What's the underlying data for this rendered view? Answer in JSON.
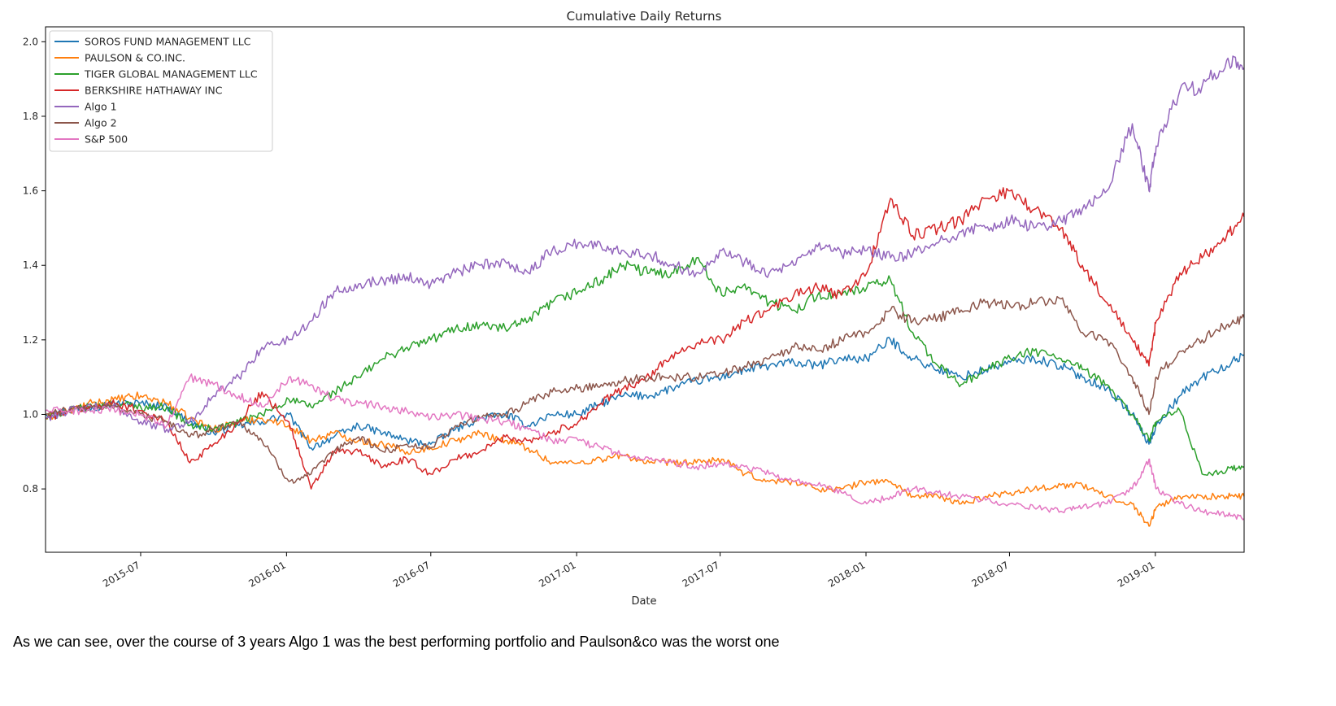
{
  "caption": "As we can see, over the course of 3 years Algo 1 was the best performing portfolio and Paulson&co was the worst one",
  "chart_data": {
    "type": "line",
    "title": "Cumulative Daily Returns",
    "xlabel": "Date",
    "ylabel": "",
    "x_type": "date",
    "xlim": [
      "2015-03-03",
      "2019-04-23"
    ],
    "ylim": [
      0.63,
      2.04
    ],
    "x_ticks": [
      "2015-07",
      "2016-01",
      "2016-07",
      "2017-01",
      "2017-07",
      "2018-01",
      "2018-07",
      "2019-01"
    ],
    "y_ticks": [
      0.8,
      1.0,
      1.2,
      1.4,
      1.6,
      1.8,
      2.0
    ],
    "grid": false,
    "legend_position": "top-left",
    "x": [
      "2015-03-03",
      "2015-04-01",
      "2015-05-01",
      "2015-06-01",
      "2015-07-01",
      "2015-08-03",
      "2015-09-01",
      "2015-10-01",
      "2015-11-02",
      "2015-12-01",
      "2016-01-04",
      "2016-02-01",
      "2016-03-01",
      "2016-04-01",
      "2016-05-02",
      "2016-06-01",
      "2016-07-01",
      "2016-08-01",
      "2016-09-01",
      "2016-10-03",
      "2016-11-01",
      "2016-12-01",
      "2017-01-03",
      "2017-02-01",
      "2017-03-01",
      "2017-04-03",
      "2017-05-01",
      "2017-06-01",
      "2017-07-03",
      "2017-08-01",
      "2017-09-01",
      "2017-10-02",
      "2017-11-01",
      "2017-12-01",
      "2018-01-02",
      "2018-02-01",
      "2018-03-01",
      "2018-04-02",
      "2018-05-01",
      "2018-06-01",
      "2018-07-02",
      "2018-08-01",
      "2018-09-04",
      "2018-10-01",
      "2018-11-01",
      "2018-12-03",
      "2018-12-24",
      "2019-01-02",
      "2019-02-01",
      "2019-03-01",
      "2019-04-01",
      "2019-04-23"
    ],
    "series": [
      {
        "name": "SOROS FUND MANAGEMENT LLC",
        "color": "#1f77b4",
        "values": [
          1.0,
          1.01,
          1.02,
          1.03,
          1.03,
          1.02,
          0.98,
          0.95,
          0.97,
          0.98,
          1.0,
          0.91,
          0.94,
          0.97,
          0.95,
          0.93,
          0.92,
          0.96,
          0.99,
          1.0,
          0.97,
          1.0,
          1.0,
          1.03,
          1.05,
          1.05,
          1.07,
          1.09,
          1.1,
          1.12,
          1.13,
          1.14,
          1.13,
          1.15,
          1.15,
          1.2,
          1.15,
          1.12,
          1.1,
          1.12,
          1.14,
          1.15,
          1.13,
          1.1,
          1.07,
          1.0,
          0.92,
          0.97,
          1.05,
          1.1,
          1.13,
          1.16
        ]
      },
      {
        "name": "PAULSON & CO.INC.",
        "color": "#ff7f0e",
        "values": [
          0.99,
          1.01,
          1.03,
          1.04,
          1.05,
          1.03,
          0.99,
          0.96,
          0.98,
          0.99,
          0.97,
          0.93,
          0.95,
          0.93,
          0.92,
          0.9,
          0.91,
          0.93,
          0.95,
          0.93,
          0.91,
          0.87,
          0.87,
          0.88,
          0.89,
          0.87,
          0.87,
          0.87,
          0.88,
          0.84,
          0.82,
          0.82,
          0.8,
          0.8,
          0.82,
          0.82,
          0.78,
          0.78,
          0.76,
          0.78,
          0.79,
          0.8,
          0.81,
          0.81,
          0.78,
          0.76,
          0.7,
          0.75,
          0.78,
          0.78,
          0.78,
          0.78
        ]
      },
      {
        "name": "TIGER GLOBAL MANAGEMENT LLC",
        "color": "#2ca02c",
        "values": [
          0.99,
          1.01,
          1.02,
          1.03,
          1.02,
          1.02,
          0.97,
          0.96,
          0.98,
          1.0,
          1.04,
          1.02,
          1.06,
          1.1,
          1.15,
          1.18,
          1.2,
          1.23,
          1.24,
          1.23,
          1.25,
          1.3,
          1.33,
          1.36,
          1.4,
          1.38,
          1.38,
          1.42,
          1.32,
          1.35,
          1.3,
          1.28,
          1.32,
          1.32,
          1.34,
          1.36,
          1.22,
          1.13,
          1.08,
          1.12,
          1.15,
          1.17,
          1.15,
          1.12,
          1.08,
          1.0,
          0.93,
          0.98,
          1.01,
          0.84,
          0.85,
          0.86
        ]
      },
      {
        "name": "BERKSHIRE HATHAWAY INC",
        "color": "#d62728",
        "values": [
          0.99,
          1.01,
          1.02,
          1.03,
          1.01,
          0.98,
          0.87,
          0.92,
          0.98,
          1.06,
          0.98,
          0.8,
          0.9,
          0.9,
          0.86,
          0.88,
          0.84,
          0.88,
          0.9,
          0.94,
          0.93,
          0.95,
          0.98,
          1.03,
          1.07,
          1.1,
          1.16,
          1.19,
          1.2,
          1.25,
          1.28,
          1.32,
          1.34,
          1.32,
          1.38,
          1.58,
          1.48,
          1.5,
          1.52,
          1.58,
          1.6,
          1.55,
          1.5,
          1.4,
          1.3,
          1.2,
          1.13,
          1.25,
          1.38,
          1.42,
          1.48,
          1.53
        ]
      },
      {
        "name": "Algo 1",
        "color": "#9467bd",
        "values": [
          0.99,
          1.01,
          1.02,
          1.02,
          0.98,
          0.96,
          0.98,
          1.05,
          1.1,
          1.18,
          1.2,
          1.25,
          1.33,
          1.35,
          1.36,
          1.37,
          1.35,
          1.38,
          1.4,
          1.41,
          1.38,
          1.44,
          1.46,
          1.45,
          1.44,
          1.43,
          1.4,
          1.38,
          1.44,
          1.41,
          1.38,
          1.4,
          1.45,
          1.43,
          1.44,
          1.42,
          1.43,
          1.46,
          1.49,
          1.5,
          1.52,
          1.5,
          1.52,
          1.55,
          1.6,
          1.78,
          1.6,
          1.72,
          1.87,
          1.88,
          1.95,
          1.93
        ]
      },
      {
        "name": "Algo 2",
        "color": "#8c564b",
        "values": [
          1.0,
          1.01,
          1.02,
          1.02,
          1.0,
          0.98,
          0.94,
          0.96,
          0.98,
          0.93,
          0.82,
          0.84,
          0.9,
          0.94,
          0.9,
          0.92,
          0.91,
          0.97,
          0.99,
          1.0,
          1.03,
          1.06,
          1.07,
          1.08,
          1.09,
          1.1,
          1.1,
          1.1,
          1.11,
          1.13,
          1.15,
          1.18,
          1.17,
          1.2,
          1.22,
          1.28,
          1.25,
          1.26,
          1.28,
          1.3,
          1.29,
          1.3,
          1.31,
          1.22,
          1.2,
          1.1,
          1.0,
          1.1,
          1.17,
          1.2,
          1.24,
          1.26
        ]
      },
      {
        "name": "S&P 500",
        "color": "#e377c2",
        "values": [
          1.01,
          1.01,
          1.01,
          1.01,
          1.0,
          0.97,
          1.1,
          1.08,
          1.05,
          1.02,
          1.1,
          1.08,
          1.04,
          1.03,
          1.02,
          1.01,
          0.99,
          1.0,
          0.99,
          0.98,
          0.96,
          0.93,
          0.93,
          0.91,
          0.89,
          0.88,
          0.87,
          0.86,
          0.87,
          0.86,
          0.84,
          0.82,
          0.81,
          0.79,
          0.76,
          0.78,
          0.8,
          0.79,
          0.78,
          0.77,
          0.76,
          0.75,
          0.74,
          0.75,
          0.76,
          0.8,
          0.88,
          0.8,
          0.76,
          0.74,
          0.73,
          0.72
        ]
      }
    ]
  }
}
